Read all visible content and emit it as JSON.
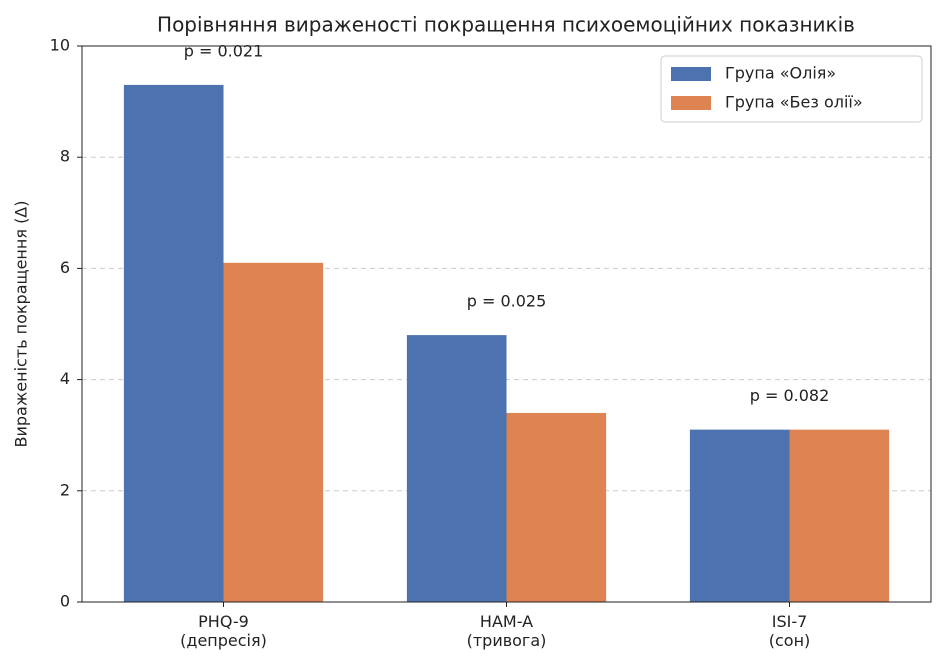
{
  "chart_data": {
    "type": "bar",
    "title": "Порівняння вираженості покращення психоемоційних показників",
    "ylabel": "Вираженість покращення (Δ)",
    "categories": [
      "PHQ-9\n(депресія)",
      "HAM-A\n(тривога)",
      "ISI-7\n(сон)"
    ],
    "series": [
      {
        "name": "Група «Олія»",
        "color": "#4c72b0",
        "values": [
          9.3,
          4.8,
          3.1
        ]
      },
      {
        "name": "Група «Без олії»",
        "color": "#dd8452",
        "values": [
          6.1,
          3.4,
          3.1
        ]
      }
    ],
    "annotations": [
      "p = 0.021",
      "p = 0.025",
      "p = 0.082"
    ],
    "ylim": [
      0,
      10
    ],
    "yticks": [
      0,
      2,
      4,
      6,
      8,
      10
    ],
    "grid": true,
    "legend": "upper right"
  }
}
